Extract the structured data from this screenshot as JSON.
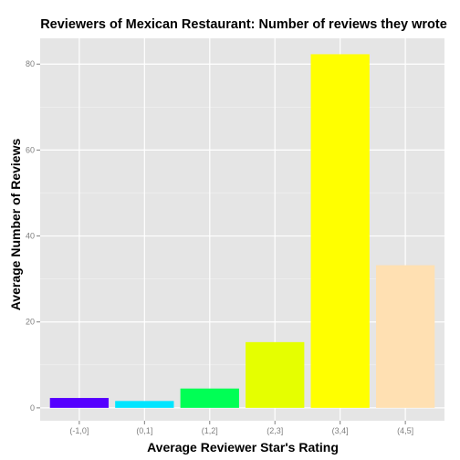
{
  "chart_data": {
    "type": "bar",
    "title": "Reviewers of Mexican Restaurant: Number of reviews they wrote",
    "xlabel": "Average Reviewer Star's Rating",
    "ylabel": "Average Number of Reviews",
    "categories": [
      "(-1,0]",
      "(0,1]",
      "(1,2]",
      "(2,3]",
      "(3,4]",
      "(4,5]"
    ],
    "values": [
      2.3,
      1.6,
      4.5,
      15.3,
      82.3,
      33.2
    ],
    "colors": [
      "#5500ff",
      "#00e5ff",
      "#00ff55",
      "#e5ff00",
      "#ffff00",
      "#ffe0b2"
    ],
    "ylim": [
      -3,
      86
    ],
    "yticks": [
      0,
      20,
      40,
      60,
      80
    ],
    "grid": true,
    "panel_background": "#e5e5e5",
    "legend": "none"
  }
}
